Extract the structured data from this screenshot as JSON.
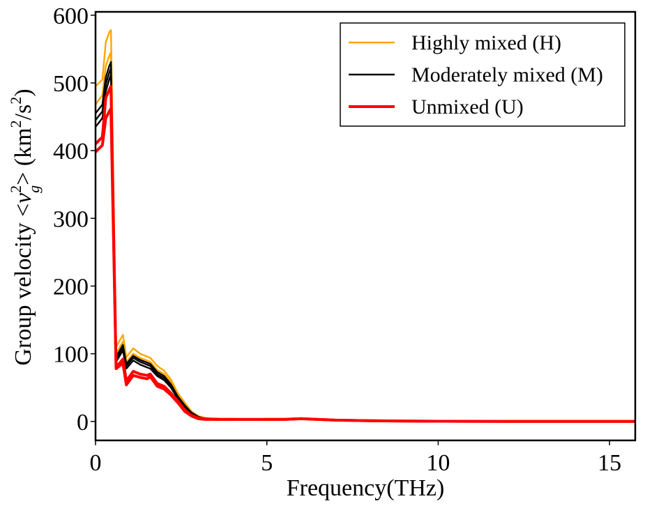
{
  "chart_data": {
    "type": "line",
    "title": "",
    "xlabel": "Frequency(THz)",
    "ylabel_parts": {
      "prefix": "Group velocity <",
      "v": "v",
      "sup": "2",
      "sub": "g",
      "mid": "> (km",
      "sup2": "2",
      "mid2": "/s",
      "sup3": "2",
      "suffix": ")"
    },
    "xlim": [
      0,
      15.75
    ],
    "ylim": [
      -28,
      605
    ],
    "xticks": [
      0,
      5,
      10,
      15
    ],
    "xtick_labels": [
      "0",
      "5",
      "10",
      "15"
    ],
    "yticks": [
      0,
      100,
      200,
      300,
      400,
      500,
      600
    ],
    "ytick_labels": [
      "0",
      "100",
      "200",
      "300",
      "400",
      "500",
      "600"
    ],
    "legend_position": "top-right",
    "x": [
      0,
      0.2,
      0.3,
      0.4,
      0.45,
      0.6,
      0.8,
      0.9,
      1.1,
      1.3,
      1.5,
      1.6,
      1.8,
      2.0,
      2.2,
      2.4,
      2.6,
      2.8,
      3.0,
      3.2,
      3.5,
      4.0,
      4.5,
      5.0,
      5.5,
      6.0,
      6.5,
      7.0,
      8.0,
      9.0,
      10.0,
      11.0,
      12.0,
      13.0,
      14.0,
      15.0,
      15.75
    ],
    "series": [
      {
        "name": "Highly mixed (H)",
        "group": "H",
        "color": "#FFA500",
        "width": 2.4,
        "in_legend": true,
        "values": [
          495,
          505,
          560,
          575,
          578,
          110,
          128,
          95,
          108,
          100,
          96,
          94,
          82,
          75,
          62,
          42,
          28,
          15,
          8,
          5,
          4,
          4,
          3,
          4,
          4,
          5,
          3,
          2,
          1,
          0.5,
          0.3,
          0.2,
          0.1,
          0.1,
          0.1,
          0.1,
          0.1
        ]
      },
      {
        "name": "",
        "group": "H",
        "color": "#FFA500",
        "width": 2.4,
        "in_legend": false,
        "values": [
          468,
          482,
          525,
          540,
          545,
          100,
          118,
          88,
          100,
          94,
          90,
          88,
          76,
          70,
          58,
          39,
          26,
          14,
          7,
          5,
          4,
          4,
          3,
          4,
          4,
          5,
          3,
          2,
          1,
          0.5,
          0.3,
          0.2,
          0.1,
          0.1,
          0.1,
          0.1,
          0.1
        ]
      },
      {
        "name": "Moderately mixed (M)",
        "group": "M",
        "color": "#000000",
        "width": 2.4,
        "in_legend": true,
        "values": [
          455,
          468,
          508,
          525,
          531,
          95,
          113,
          85,
          97,
          91,
          87,
          85,
          73,
          67,
          55,
          37,
          24,
          13,
          7,
          4,
          4,
          3,
          3,
          3,
          3,
          4,
          3,
          2,
          1,
          0.5,
          0.3,
          0.2,
          0.1,
          0.1,
          0.1,
          0.1,
          0.1
        ]
      },
      {
        "name": "",
        "group": "M",
        "color": "#000000",
        "width": 2.4,
        "in_legend": false,
        "values": [
          445,
          458,
          498,
          515,
          522,
          92,
          109,
          82,
          94,
          88,
          84,
          82,
          70,
          64,
          53,
          36,
          23,
          12,
          6,
          4,
          4,
          3,
          3,
          3,
          3,
          4,
          3,
          2,
          1,
          0.5,
          0.3,
          0.2,
          0.1,
          0.1,
          0.1,
          0.1,
          0.1
        ]
      },
      {
        "name": "",
        "group": "M",
        "color": "#000000",
        "width": 2.4,
        "in_legend": false,
        "values": [
          435,
          448,
          488,
          505,
          512,
          88,
          105,
          78,
          90,
          84,
          80,
          78,
          67,
          61,
          50,
          34,
          22,
          11,
          6,
          4,
          3,
          3,
          3,
          3,
          3,
          4,
          3,
          2,
          1,
          0.5,
          0.3,
          0.2,
          0.1,
          0.1,
          0.1,
          0.1,
          0.1
        ]
      },
      {
        "name": "Unmixed (U)",
        "group": "U",
        "color": "#FF0000",
        "width": 4,
        "in_legend": true,
        "values": [
          410,
          420,
          478,
          490,
          495,
          80,
          92,
          60,
          74,
          70,
          68,
          70,
          56,
          52,
          42,
          30,
          17,
          9,
          5,
          4,
          3,
          3,
          3,
          3,
          3,
          4,
          3,
          2,
          1,
          0.5,
          0.3,
          0.2,
          0.1,
          0.1,
          0.1,
          0.1,
          0.1
        ]
      },
      {
        "name": "",
        "group": "U",
        "color": "#FF0000",
        "width": 4,
        "in_legend": false,
        "values": [
          398,
          408,
          448,
          458,
          462,
          78,
          86,
          54,
          68,
          65,
          63,
          66,
          52,
          48,
          39,
          28,
          15,
          8,
          4,
          3,
          3,
          3,
          3,
          3,
          3,
          4,
          3,
          2,
          1,
          0.5,
          0.3,
          0.2,
          0.1,
          0.1,
          0.1,
          0.1,
          0.1
        ]
      }
    ]
  }
}
